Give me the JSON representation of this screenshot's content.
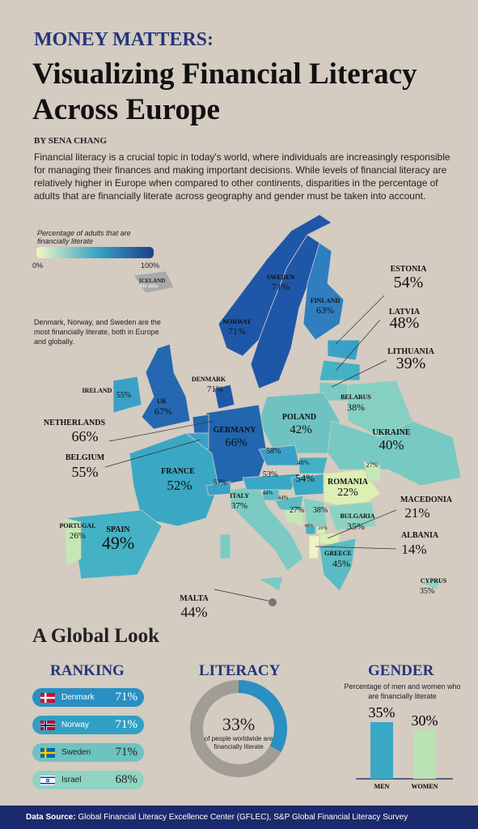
{
  "header": {
    "kicker": "MONEY MATTERS:",
    "title": "Visualizing Financial Literacy Across Europe",
    "byline": "BY SENA CHANG",
    "intro": "Financial literacy is a crucial topic in today's world, where individuals are increasingly responsible for managing their finances and making important decisions. While levels of financial literacy are relatively higher in Europe when compared to other continents, disparities in the percentage of adults that are financially literate across geography and gender must be taken into account."
  },
  "legend": {
    "title": "Percentage of adults that are financially literate",
    "min": "0%",
    "max": "100%"
  },
  "iceland": {
    "name": "ICELAND",
    "note": "No data"
  },
  "callout": "Denmark, Norway, and Sweden are the most financially literate, both in Europe and globally.",
  "countries": [
    {
      "name": "ESTONIA",
      "value": "54%"
    },
    {
      "name": "LATVIA",
      "value": "48%"
    },
    {
      "name": "LITHUANIA",
      "value": "39%"
    },
    {
      "name": "SWEDEN",
      "value": "71%"
    },
    {
      "name": "FINLAND",
      "value": "63%"
    },
    {
      "name": "NORWAY",
      "value": "71%"
    },
    {
      "name": "DENMARK",
      "value": "71%"
    },
    {
      "name": "IRELAND",
      "value": "55%"
    },
    {
      "name": "UK",
      "value": "67%"
    },
    {
      "name": "NETHERLANDS",
      "value": "66%"
    },
    {
      "name": "BELGIUM",
      "value": "55%"
    },
    {
      "name": "GERMANY",
      "value": "66%"
    },
    {
      "name": "POLAND",
      "value": "42%"
    },
    {
      "name": "BELARUS",
      "value": "38%"
    },
    {
      "name": "UKRAINE",
      "value": "40%"
    },
    {
      "name": "FRANCE",
      "value": "52%"
    },
    {
      "name": "SPAIN",
      "value": "49%"
    },
    {
      "name": "PORTUGAL",
      "value": "26%"
    },
    {
      "name": "ITALY",
      "value": "37%"
    },
    {
      "name": "ROMANIA",
      "value": "22%"
    },
    {
      "name": "BULGARIA",
      "value": "35%"
    },
    {
      "name": "MACEDONIA",
      "value": "21%"
    },
    {
      "name": "ALBANIA",
      "value": "14%"
    },
    {
      "name": "GREECE",
      "value": "45%"
    },
    {
      "name": "MALTA",
      "value": "44%"
    },
    {
      "name": "CYPRUS",
      "value": "35%"
    },
    {
      "value": "58%"
    },
    {
      "value": "48%"
    },
    {
      "value": "53%"
    },
    {
      "value": "54%"
    },
    {
      "value": "57%"
    },
    {
      "value": "44%"
    },
    {
      "value": "44%"
    },
    {
      "value": "27%"
    },
    {
      "value": "38%"
    },
    {
      "value": "27%"
    },
    {
      "value": "48%"
    },
    {
      "value": "20%"
    }
  ],
  "global": {
    "heading": "A Global Look",
    "ranking": {
      "title": "RANKING",
      "items": [
        {
          "country": "Denmark",
          "value": "71%"
        },
        {
          "country": "Norway",
          "value": "71%"
        },
        {
          "country": "Sweden",
          "value": "71%"
        },
        {
          "country": "Israel",
          "value": "68%"
        }
      ]
    },
    "literacy": {
      "title": "LITERACY",
      "value": 33,
      "value_label": "33%",
      "caption": "of people worldwide are financially literate"
    },
    "gender": {
      "title": "GENDER",
      "subtitle": "Percentage of men and women who are financially literate",
      "bars": [
        {
          "name": "MEN",
          "value": 35,
          "value_label": "35%"
        },
        {
          "name": "WOMEN",
          "value": 30,
          "value_label": "30%"
        }
      ]
    }
  },
  "footer": {
    "label": "Data Source:",
    "text": "Global Financial Literacy Excellence Center (GFLEC), S&P Global Financial Literacy Survey"
  }
}
